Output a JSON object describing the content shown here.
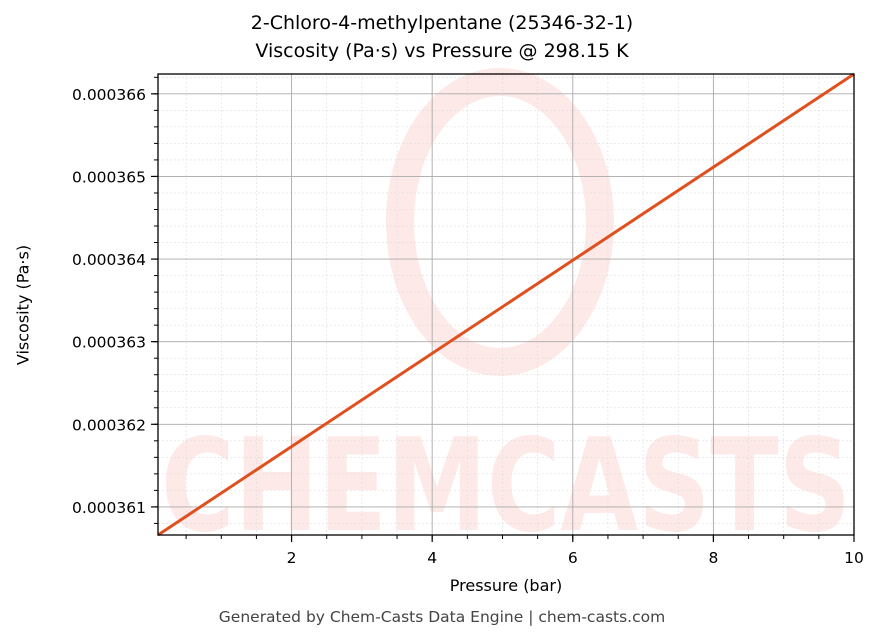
{
  "chart_data": {
    "type": "line",
    "title": "2-Chloro-4-methylpentane (25346-32-1)",
    "subtitle": "Viscosity (Pa·s) vs Pressure @ 298.15 K",
    "xlabel": "Pressure (bar)",
    "ylabel": "Viscosity (Pa·s)",
    "xlim": [
      0.1,
      10
    ],
    "ylim": [
      0.00036066,
      0.00036624
    ],
    "xticks": [
      2,
      4,
      6,
      8,
      10
    ],
    "yticks": [
      0.000361,
      0.000362,
      0.000363,
      0.000364,
      0.000365,
      0.000366
    ],
    "ytick_labels": [
      "0.000361",
      "0.000362",
      "0.000363",
      "0.000364",
      "0.000365",
      "0.000366"
    ],
    "grid": true,
    "series": [
      {
        "x": [
          0.1,
          10
        ],
        "y": [
          0.00036066,
          0.00036624
        ],
        "color": "#e0501e"
      }
    ],
    "watermark": "CHEMCASTS"
  },
  "footer": "Generated by Chem-Casts Data Engine | chem-casts.com"
}
